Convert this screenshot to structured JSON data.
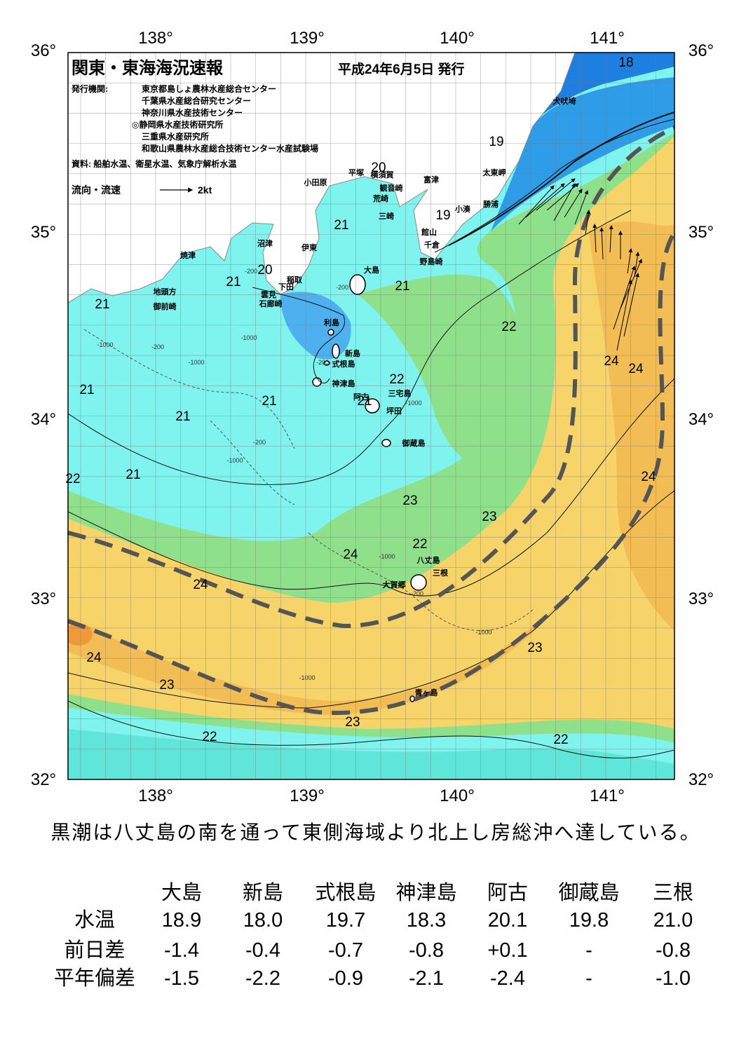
{
  "header": {
    "title": "関東・東海海況速報",
    "date": "平成24年6月5日 発行",
    "publisher_label": "発行機関:",
    "publishers": [
      "東京都島しょ農林水産総合センター",
      "千葉県水産総合研究センター",
      "神奈川県水産技術センター",
      "◎静岡県水産技術研究所",
      "三重県水産研究所",
      "和歌山県農林水産総合技術センター水産試験場"
    ],
    "source": "資料: 船舶水温、衛星水温、気象庁解析水温",
    "legend": {
      "label": "流向・流速",
      "scale": "2kt"
    }
  },
  "axes": {
    "lon_labels": [
      "138°",
      "139°",
      "140°",
      "141°"
    ],
    "lat_labels": [
      "36°",
      "35°",
      "34°",
      "33°",
      "32°"
    ]
  },
  "places": [
    "犬吠埼",
    "太東岬",
    "勝浦",
    "小湊",
    "富津",
    "平塚",
    "横須賀",
    "観音崎",
    "荒崎",
    "三崎",
    "小田原",
    "館山",
    "千倉",
    "野島崎",
    "沼津",
    "伊東",
    "焼津",
    "稲取",
    "下田",
    "雲見",
    "石廊崎",
    "地頭方",
    "御前崎",
    "大島",
    "利島",
    "新島",
    "式根島",
    "神津島",
    "阿古",
    "三宅島",
    "坪田",
    "御蔵島",
    "八丈島",
    "三根",
    "大賀郷",
    "青ヶ島"
  ],
  "isotherm_labels": [
    "18",
    "19",
    "20",
    "19",
    "21",
    "20",
    "21",
    "21",
    "21",
    "22",
    "24",
    "24",
    "22",
    "21",
    "21",
    "21",
    "21",
    "22",
    "21",
    "24",
    "23",
    "23",
    "22",
    "24",
    "24",
    "23",
    "24",
    "23",
    "23",
    "22",
    "22"
  ],
  "depth_labels": [
    "-200",
    "-1000",
    "-200",
    "-1000",
    "-200",
    "-1000",
    "-1000",
    "-200",
    "-1000",
    "-200",
    "-1000",
    "-1000",
    "-1000",
    "-200"
  ],
  "summary": "黒潮は八丈島の南を通って東側海域より北上し房総沖へ達している。",
  "table": {
    "columns": [
      "大島",
      "新島",
      "式根島",
      "神津島",
      "阿古",
      "御蔵島",
      "三根"
    ],
    "rows": [
      {
        "label": "水温",
        "values": [
          "18.9",
          "18.0",
          "19.7",
          "18.3",
          "20.1",
          "19.8",
          "21.0"
        ]
      },
      {
        "label": "前日差",
        "values": [
          "-1.4",
          "-0.4",
          "-0.7",
          "-0.8",
          "+0.1",
          "-",
          "-0.8"
        ]
      },
      {
        "label": "平年偏差",
        "values": [
          "-1.5",
          "-2.2",
          "-0.9",
          "-2.1",
          "-2.4",
          "-",
          "-1.0"
        ]
      }
    ]
  }
}
